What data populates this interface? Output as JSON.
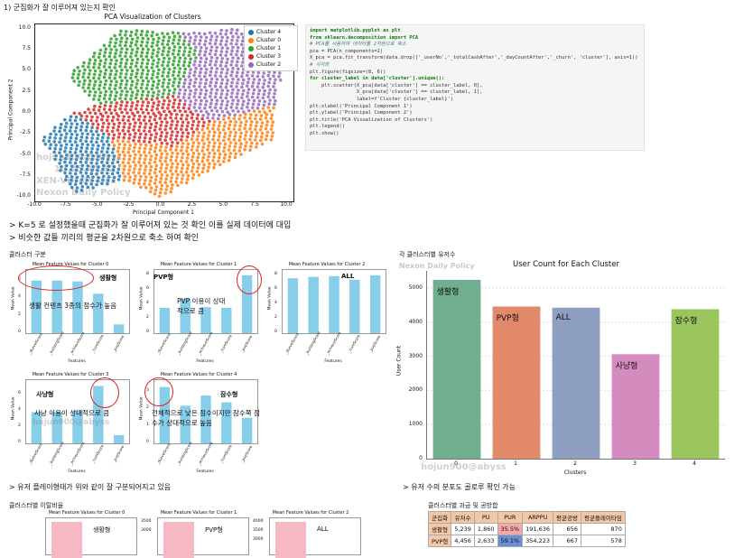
{
  "header": {
    "title": "1) 군집화가 잘 이루어져 있는지 확인"
  },
  "pca_chart": {
    "chart_data": {
      "type": "scatter",
      "title": "PCA Visualization of Clusters",
      "xlabel": "Principal Component 1",
      "ylabel": "Principal Component 2",
      "xlim": [
        -10,
        10.5
      ],
      "ylim": [
        -10.5,
        10.5
      ],
      "x_ticks": [
        "-10.0",
        "-7.5",
        "-5.0",
        "-2.5",
        "0.0",
        "2.5",
        "5.0",
        "7.5",
        "10.0"
      ],
      "y_ticks": [
        "10.0",
        "7.5",
        "5.0",
        "2.5",
        "0.0",
        "-2.5",
        "-5.0",
        "-7.5",
        "-10.0"
      ],
      "legend_position": "top-right",
      "series": [
        {
          "name": "Cluster 4",
          "color": "#1f77b4"
        },
        {
          "name": "Cluster 0",
          "color": "#ff7f0e"
        },
        {
          "name": "Cluster 1",
          "color": "#2ca02c"
        },
        {
          "name": "Cluster 3",
          "color": "#d62728"
        },
        {
          "name": "Cluster 2",
          "color": "#9467bd"
        }
      ]
    }
  },
  "watermark": {
    "user": "hojun900@abyss",
    "ip": "10.35.44.32",
    "host": "XEN-VDI-08-042",
    "policy": "Nexon Daily Policy"
  },
  "code": {
    "lines": [
      [
        "kw",
        "import matplotlib.pyplot as plt"
      ],
      [
        "kw",
        "from sklearn.decomposition import PCA"
      ],
      [
        "cm",
        "# PCA를 사용하여 데이터를 2차원으로 축소"
      ],
      [
        "",
        "pca = PCA(n_components=2)"
      ],
      [
        "",
        "X_pca = pca.fit_transform(data.drop(['_userNo','_totalCashAfter','_dayCountAfter','_churn', 'cluster'], axis=1))"
      ],
      [
        "cm",
        "# 시각화"
      ],
      [
        "",
        "plt.figure(figsize=(8, 6))"
      ],
      [
        "kw",
        "for cluster_label in data['cluster'].unique():"
      ],
      [
        "",
        "    plt.scatter(X_pca[data['cluster'] == cluster_label, 0],"
      ],
      [
        "",
        "                X_pca[data['cluster'] == cluster_label, 1],"
      ],
      [
        "",
        "                label=f'Cluster {cluster_label}')"
      ],
      [
        "",
        "plt.xlabel('Principal Component 1')"
      ],
      [
        "",
        "plt.ylabel('Principal Component 2')"
      ],
      [
        "",
        "plt.title('PCA Visualization of Clusters')"
      ],
      [
        "",
        "plt.legend()"
      ],
      [
        "",
        "plt.show()"
      ]
    ]
  },
  "notes": {
    "note1": "> K=5 로 설정했을때 군집화가 잘 이루어져 있는 것 확인 이를 실제 데이터에 대입",
    "note2": "> 비슷한 값들 끼리의 평균을 2차원으로 축소 하여 확인",
    "section_cluster": "클러스터 구분",
    "section_usercount": "각 클러스터별 유저수",
    "note3": "> 유저 플레이형태가 위와 같이 잘 구분되어지고 있음",
    "note4": "> 유저 수의 분포도 골로루 확인 가능",
    "section_churn": "클러스터별 이탈비율",
    "section_pay": "클러스터별 과금 및 공방합"
  },
  "mini_charts": [
    {
      "title": "Mean Feature Values for Cluster 0",
      "xlabel": "Features",
      "ylabel": "Mean Value",
      "categories": [
        "_dLevelScore",
        "_buildingScore",
        "_achieveScore",
        "_huntScore",
        "_pvpScore"
      ],
      "values": [
        6.0,
        6.0,
        5.9,
        4.5,
        1.0
      ],
      "ylim": [
        0,
        7
      ],
      "annotation_top": "생활형",
      "annotation_mid": "생활 컨텐츠 3종의 점수가 높음"
    },
    {
      "title": "Mean Feature Values for Cluster 1",
      "xlabel": "Features",
      "ylabel": "Mean Value",
      "categories": [
        "_dLevelScore",
        "_buildingScore",
        "_achieveScore",
        "_huntScore",
        "_pvpScore"
      ],
      "values": [
        3.5,
        4.8,
        3.6,
        3.5,
        8.0
      ],
      "ylim": [
        0,
        8.5
      ],
      "annotation_top": "PVP형",
      "annotation_mid": "PVP 이용이 상대적으로 큼"
    },
    {
      "title": "Mean Feature Values for Cluster 2",
      "xlabel": "Features",
      "ylabel": "Mean Value",
      "categories": [
        "_dLevelScore",
        "_buildingScore",
        "_achieveScore",
        "_huntScore",
        "_pvpScore"
      ],
      "values": [
        7.6,
        7.8,
        7.9,
        7.4,
        8.0
      ],
      "ylim": [
        0,
        8.5
      ],
      "annotation_top": "ALL",
      "annotation_mid": ""
    },
    {
      "title": "Mean Feature Values for Cluster 3",
      "xlabel": "Features",
      "ylabel": "Mean Value",
      "categories": [
        "_dLevelScore",
        "_buildingScore",
        "_achieveScore",
        "_huntScore",
        "_pvpScore"
      ],
      "values": [
        3.8,
        3.8,
        4.0,
        7.0,
        1.0
      ],
      "ylim": [
        0,
        7.5
      ],
      "annotation_top": "사냥형",
      "annotation_mid": "사냥 이용이 상대적으로 큼"
    },
    {
      "title": "Mean Feature Values for Cluster 4",
      "xlabel": "Features",
      "ylabel": "Mean Value",
      "categories": [
        "_dLevelScore",
        "_buildingScore",
        "_achieveScore",
        "_huntScore",
        "_pvpScore"
      ],
      "values": [
        3.3,
        2.2,
        2.8,
        2.4,
        1.5
      ],
      "ylim": [
        0,
        3.6
      ],
      "annotation_top": "잠수형",
      "annotation_mid": "전체적으로 낮은 점수이지만 잠수쪽 점수가 상대적으로 높음"
    }
  ],
  "user_count_chart": {
    "chart_data": {
      "type": "bar",
      "title": "User Count for Each Cluster",
      "xlabel": "Clusters",
      "ylabel": "User Count",
      "categories": [
        "0",
        "1",
        "2",
        "3",
        "4"
      ],
      "values": [
        5239,
        4456,
        4420,
        3060,
        4380
      ],
      "ylim": [
        0,
        5500
      ],
      "y_ticks": [
        "0",
        "1000",
        "2000",
        "3000",
        "4000",
        "5000"
      ],
      "bar_labels": [
        "생활형",
        "PVP형",
        "ALL",
        "사냥형",
        "잠수형"
      ],
      "colors": [
        "#6fae8f",
        "#e2896a",
        "#8f9fc2",
        "#d48cbf",
        "#9bc65d"
      ]
    }
  },
  "churn_charts": [
    {
      "title": "Mean Feature Values for Cluster 0",
      "label": "생활형",
      "yticks": []
    },
    {
      "title": "Mean Feature Values for Cluster 1",
      "label": "PVP형",
      "yticks": [
        "3500",
        "3000"
      ]
    },
    {
      "title": "Mean Feature Values for Cluster 2",
      "label": "ALL",
      "yticks": [
        "4000",
        "3500",
        "3000"
      ]
    }
  ],
  "pay_table": {
    "headers": [
      "군집화",
      "유저수",
      "PU",
      "PUR",
      "ARPPU",
      "평균공방",
      "평균플레이타임"
    ],
    "rows": [
      [
        "생활형",
        "5,239",
        "1,860",
        "35.5%",
        "191,636",
        "656",
        "870"
      ],
      [
        "PVP형",
        "4,456",
        "2,633",
        "59.1%",
        "354,223",
        "667",
        "578"
      ]
    ]
  }
}
